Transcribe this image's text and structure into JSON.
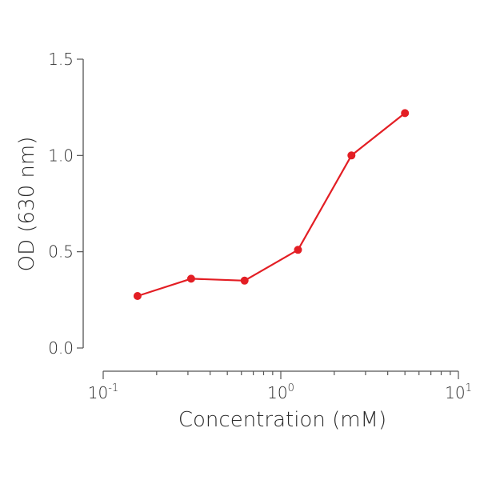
{
  "chart_data": {
    "type": "line",
    "title": "",
    "xlabel": "Concentration (mM)",
    "ylabel": "OD (630 nm)",
    "xscale": "log",
    "xlim": [
      0.1,
      10
    ],
    "ylim": [
      0.0,
      1.5
    ],
    "legend": "none",
    "grid": false,
    "x_ticks": [
      {
        "base": "10",
        "exp": "-1"
      },
      {
        "base": "10",
        "exp": "0"
      },
      {
        "base": "10",
        "exp": "1"
      }
    ],
    "y_ticks": [
      "0.0",
      "0.5",
      "1.0",
      "1.5"
    ],
    "series": [
      {
        "color": "#e31e24",
        "x": [
          0.156,
          0.3125,
          0.625,
          1.25,
          2.5,
          5.0
        ],
        "y": [
          0.27,
          0.36,
          0.35,
          0.51,
          1.0,
          1.22
        ]
      }
    ]
  }
}
